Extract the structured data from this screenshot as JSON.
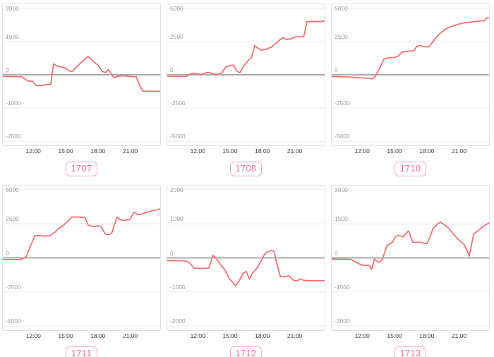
{
  "colors": {
    "line": "#f56b6b",
    "zero_line": "#ababab",
    "gridline": "#ebebeb",
    "panel_border": "#e1e1ea",
    "ytick_text": "#9b9b9b",
    "xtick_text": "#3c3c3c",
    "badge_border": "#f8abc5",
    "badge_text": "#ef6f9b",
    "background": "#ffffff"
  },
  "xaxis": {
    "tick_labels": [
      "12:00",
      "15:00",
      "18:00",
      "21:00"
    ],
    "tick_hours": [
      12,
      15,
      18,
      21
    ],
    "range": [
      9.1,
      23.85
    ]
  },
  "chart_data": [
    {
      "type": "line",
      "badge": "1707",
      "yticks": [
        2000,
        1000,
        0,
        -1000,
        -2000
      ],
      "ylim": [
        -2125,
        2125
      ],
      "x": [
        9.1,
        10.9,
        11.4,
        11.9,
        12.2,
        12.7,
        13.1,
        13.6,
        13.85,
        14.3,
        14.9,
        15.3,
        15.6,
        16.2,
        16.7,
        17.1,
        17.5,
        18.0,
        18.4,
        18.75,
        19.0,
        19.5,
        19.9,
        20.4,
        21.0,
        21.6,
        21.9,
        22.2,
        23.85
      ],
      "y": [
        -50,
        -60,
        -180,
        -200,
        -320,
        -330,
        -300,
        -290,
        330,
        250,
        210,
        120,
        100,
        300,
        450,
        550,
        420,
        300,
        100,
        70,
        160,
        -90,
        -40,
        -30,
        -50,
        -60,
        -300,
        -490,
        -500
      ]
    },
    {
      "type": "line",
      "badge": "1708",
      "yticks": [
        5000,
        2500,
        0,
        -2500,
        -5000
      ],
      "ylim": [
        -5300,
        5300
      ],
      "x": [
        9.15,
        10.9,
        11.3,
        11.6,
        12.0,
        12.4,
        12.8,
        13.1,
        13.5,
        13.9,
        14.2,
        14.6,
        15.0,
        15.3,
        15.6,
        15.9,
        16.3,
        16.6,
        17.0,
        17.3,
        17.6,
        17.9,
        18.3,
        18.8,
        19.2,
        19.5,
        19.9,
        20.3,
        20.7,
        21.1,
        21.6,
        21.9,
        22.2,
        23.6,
        23.85
      ],
      "y": [
        -120,
        -120,
        80,
        100,
        60,
        30,
        180,
        150,
        40,
        30,
        150,
        600,
        700,
        720,
        300,
        150,
        700,
        1000,
        1300,
        2200,
        2000,
        1850,
        1900,
        2050,
        2300,
        2500,
        2800,
        2650,
        2700,
        2850,
        2850,
        2900,
        4000,
        4000,
        4050
      ]
    },
    {
      "type": "line",
      "badge": "1710",
      "yticks": [
        5000,
        2500,
        0,
        -2500,
        -5000
      ],
      "ylim": [
        -5300,
        5300
      ],
      "x": [
        9.15,
        10.0,
        11.0,
        11.5,
        12.0,
        12.5,
        12.9,
        13.2,
        13.6,
        14.0,
        14.4,
        15.0,
        15.3,
        15.7,
        16.1,
        16.5,
        16.8,
        17.1,
        17.4,
        17.8,
        18.2,
        18.6,
        19.0,
        19.4,
        19.8,
        20.2,
        20.6,
        21.0,
        21.5,
        22.0,
        22.5,
        23.0,
        23.4,
        23.6,
        23.85
      ],
      "y": [
        -130,
        -150,
        -180,
        -220,
        -230,
        -260,
        -300,
        -100,
        500,
        1200,
        1280,
        1300,
        1400,
        1700,
        1750,
        1780,
        1800,
        2150,
        2200,
        2100,
        2100,
        2500,
        2900,
        3200,
        3450,
        3600,
        3700,
        3800,
        3900,
        3950,
        4000,
        4050,
        4050,
        4250,
        4300
      ]
    },
    {
      "type": "line",
      "badge": "1711",
      "yticks": [
        5000,
        2500,
        0,
        -2500,
        -5000
      ],
      "ylim": [
        -5300,
        5300
      ],
      "x": [
        9.1,
        10.8,
        11.3,
        11.7,
        12.1,
        12.5,
        13.0,
        13.5,
        14.0,
        14.4,
        14.8,
        15.2,
        15.6,
        16.0,
        16.4,
        16.8,
        17.1,
        17.5,
        18.0,
        18.3,
        18.7,
        19.0,
        19.3,
        19.8,
        20.1,
        20.5,
        21.0,
        21.4,
        21.8,
        22.1,
        22.6,
        23.1,
        23.5,
        23.85
      ],
      "y": [
        -120,
        -120,
        100,
        900,
        1600,
        1650,
        1600,
        1620,
        1900,
        2200,
        2400,
        2700,
        3000,
        3000,
        2980,
        2950,
        2400,
        2300,
        2350,
        2300,
        1750,
        1700,
        1800,
        3000,
        2800,
        2750,
        2800,
        3350,
        3150,
        3200,
        3350,
        3450,
        3500,
        3600
      ]
    },
    {
      "type": "line",
      "badge": "1712",
      "yticks": [
        2000,
        1000,
        0,
        -1000,
        -2000
      ],
      "ylim": [
        -2125,
        2125
      ],
      "x": [
        9.1,
        10.8,
        11.2,
        11.6,
        12.0,
        12.6,
        13.0,
        13.4,
        13.7,
        14.1,
        14.5,
        14.9,
        15.2,
        15.5,
        15.8,
        16.2,
        16.5,
        16.8,
        17.1,
        17.5,
        17.9,
        18.2,
        18.5,
        18.9,
        19.1,
        19.4,
        19.7,
        20.1,
        20.5,
        20.9,
        21.2,
        21.6,
        21.9,
        22.3,
        23.85
      ],
      "y": [
        -80,
        -90,
        -150,
        -300,
        -310,
        -310,
        -300,
        80,
        -30,
        -200,
        -350,
        -600,
        -700,
        -820,
        -700,
        -450,
        -400,
        -620,
        -450,
        -300,
        -100,
        100,
        180,
        220,
        200,
        -200,
        -550,
        -560,
        -520,
        -650,
        -680,
        -620,
        -660,
        -670,
        -670
      ]
    },
    {
      "type": "line",
      "badge": "1713",
      "yticks": [
        3000,
        1500,
        0,
        -1500,
        -3000
      ],
      "ylim": [
        -3200,
        3200
      ],
      "x": [
        9.1,
        10.9,
        11.4,
        11.8,
        12.2,
        12.6,
        12.85,
        13.1,
        13.35,
        13.6,
        13.8,
        14.3,
        14.8,
        15.1,
        15.4,
        15.8,
        16.0,
        16.3,
        16.7,
        16.9,
        17.3,
        17.7,
        18.0,
        18.3,
        18.6,
        19.0,
        19.3,
        19.7,
        20.1,
        20.6,
        21.0,
        21.5,
        21.8,
        22.0,
        22.4,
        22.8,
        23.3,
        23.85
      ],
      "y": [
        -60,
        -70,
        -200,
        -300,
        -330,
        -340,
        -500,
        -60,
        -150,
        -200,
        -100,
        550,
        700,
        950,
        1000,
        930,
        1050,
        1200,
        700,
        680,
        700,
        650,
        620,
        900,
        1300,
        1500,
        1580,
        1450,
        1300,
        1000,
        800,
        600,
        300,
        80,
        1050,
        1200,
        1400,
        1550
      ]
    }
  ]
}
